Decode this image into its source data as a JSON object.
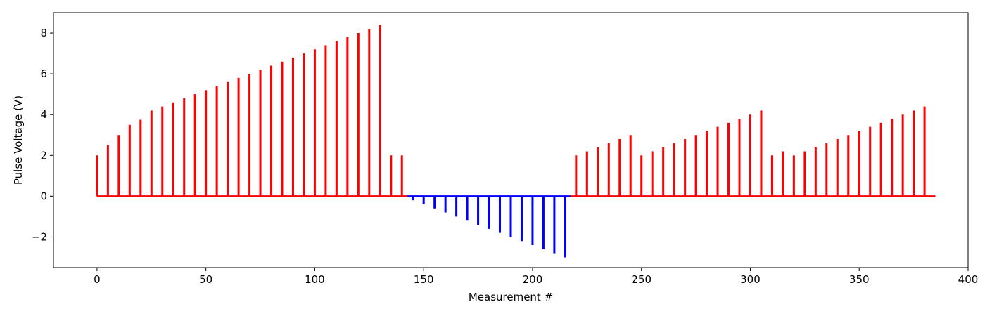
{
  "chart_data": {
    "type": "stem",
    "xlabel": "Measurement #",
    "ylabel": "Pulse Voltage (V)",
    "xlim": [
      -20,
      400
    ],
    "ylim": [
      -3.5,
      9
    ],
    "xticks": [
      0,
      50,
      100,
      150,
      200,
      250,
      300,
      350,
      400
    ],
    "yticks": [
      -2,
      0,
      2,
      4,
      6,
      8
    ],
    "ytick_labels": [
      "−2",
      "0",
      "2",
      "4",
      "6",
      "8"
    ],
    "baseline": {
      "from": 0,
      "to": 385,
      "value": 0
    },
    "positive_color": "#ff0000",
    "negative_color": "#0000ff",
    "x": [
      0,
      5,
      10,
      15,
      20,
      25,
      30,
      35,
      40,
      45,
      50,
      55,
      60,
      65,
      70,
      75,
      80,
      85,
      90,
      95,
      100,
      105,
      110,
      115,
      120,
      125,
      130,
      135,
      140,
      145,
      150,
      155,
      160,
      165,
      170,
      175,
      180,
      185,
      190,
      195,
      200,
      205,
      210,
      215,
      220,
      225,
      230,
      235,
      240,
      245,
      250,
      255,
      260,
      265,
      270,
      275,
      280,
      285,
      290,
      295,
      300,
      305,
      310,
      315,
      320,
      325,
      330,
      335,
      340,
      345,
      350,
      355,
      360,
      365,
      370,
      375,
      380
    ],
    "values": [
      2.0,
      2.5,
      3.0,
      3.5,
      3.75,
      4.2,
      4.4,
      4.6,
      4.8,
      5.0,
      5.2,
      5.4,
      5.6,
      5.8,
      6.0,
      6.2,
      6.4,
      6.6,
      6.8,
      7.0,
      7.2,
      7.4,
      7.6,
      7.8,
      8.0,
      8.2,
      8.4,
      2.0,
      2.0,
      -0.2,
      -0.4,
      -0.6,
      -0.8,
      -1.0,
      -1.2,
      -1.4,
      -1.6,
      -1.8,
      -2.0,
      -2.2,
      -2.4,
      -2.6,
      -2.8,
      -3.0,
      2.0,
      2.2,
      2.4,
      2.6,
      2.8,
      3.0,
      2.0,
      2.2,
      2.4,
      2.6,
      2.8,
      3.0,
      3.2,
      3.4,
      3.6,
      3.8,
      4.0,
      4.2,
      2.0,
      2.2,
      2.0,
      2.2,
      2.4,
      2.6,
      2.8,
      3.0,
      3.2,
      3.4,
      3.6,
      3.8,
      4.0,
      4.2,
      4.4
    ]
  }
}
